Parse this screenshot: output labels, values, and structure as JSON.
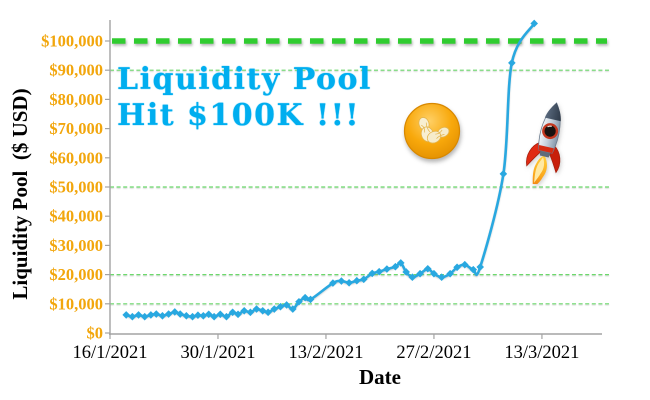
{
  "chart_data": {
    "type": "line",
    "annotation": {
      "line1": "Liquidity Pool",
      "line2": "Hit $100K !!!",
      "color": "#00AEEF"
    },
    "xlabel": "Date",
    "ylabel": "Liquidity Pool  ($ USD)",
    "x_epoch_label": "16/1/2021",
    "x_unit": "days since 16/1/2021",
    "xlim": [
      0,
      63.8
    ],
    "ylim": [
      0,
      107000
    ],
    "x_ticks": [
      {
        "label": "16/1/2021",
        "day": 0
      },
      {
        "label": "30/1/2021",
        "day": 14
      },
      {
        "label": "13/2/2021",
        "day": 28
      },
      {
        "label": "27/2/2021",
        "day": 42
      },
      {
        "label": "13/3/2021",
        "day": 56
      }
    ],
    "y_ticks": [
      {
        "label": "$0",
        "value": 0
      },
      {
        "label": "$10,000",
        "value": 10000
      },
      {
        "label": "$20,000",
        "value": 20000
      },
      {
        "label": "$30,000",
        "value": 30000
      },
      {
        "label": "$40,000",
        "value": 40000
      },
      {
        "label": "$50,000",
        "value": 50000
      },
      {
        "label": "$60,000",
        "value": 60000
      },
      {
        "label": "$70,000",
        "value": 70000
      },
      {
        "label": "$80,000",
        "value": 80000
      },
      {
        "label": "$90,000",
        "value": 90000
      },
      {
        "label": "$100,000",
        "value": 100000
      }
    ],
    "gridlines": {
      "values": [
        10000,
        20000,
        50000,
        90000
      ],
      "style": "dotted",
      "color": "#6CD96C"
    },
    "reference_line": {
      "value": 100000,
      "style": "thick-dashed",
      "color": "#30CC30"
    },
    "axis_color": "#A3A3A3",
    "y_tick_label_color": "#F2A60C",
    "x_tick_label_color": "#000000",
    "series": [
      {
        "name": "Liquidity Pool ($ USD)",
        "color": "#29A8E0",
        "marker": "diamond",
        "smooth": true,
        "points": [
          [
            2.1,
            6200
          ],
          [
            2.9,
            5600
          ],
          [
            3.7,
            6200
          ],
          [
            4.5,
            5600
          ],
          [
            5.3,
            6200
          ],
          [
            6.0,
            6500
          ],
          [
            6.8,
            5900
          ],
          [
            7.6,
            6500
          ],
          [
            8.4,
            7200
          ],
          [
            9.1,
            6500
          ],
          [
            9.9,
            5900
          ],
          [
            10.7,
            5600
          ],
          [
            11.4,
            6100
          ],
          [
            12.1,
            5900
          ],
          [
            12.8,
            6400
          ],
          [
            13.5,
            5600
          ],
          [
            14.3,
            6400
          ],
          [
            15.1,
            5600
          ],
          [
            15.9,
            7100
          ],
          [
            16.6,
            6400
          ],
          [
            17.4,
            7600
          ],
          [
            18.2,
            7100
          ],
          [
            19.0,
            8200
          ],
          [
            19.8,
            7600
          ],
          [
            20.5,
            7100
          ],
          [
            21.3,
            8200
          ],
          [
            22.1,
            9000
          ],
          [
            22.9,
            9600
          ],
          [
            23.7,
            8200
          ],
          [
            24.5,
            10700
          ],
          [
            25.3,
            12100
          ],
          [
            26.0,
            11500
          ],
          [
            28.9,
            17100
          ],
          [
            30.0,
            17800
          ],
          [
            31.0,
            17200
          ],
          [
            32.0,
            17900
          ],
          [
            32.9,
            18400
          ],
          [
            34.0,
            20400
          ],
          [
            34.9,
            21000
          ],
          [
            35.9,
            21900
          ],
          [
            37.0,
            22700
          ],
          [
            37.7,
            24000
          ],
          [
            38.4,
            20900
          ],
          [
            39.2,
            19100
          ],
          [
            40.2,
            20300
          ],
          [
            41.2,
            22000
          ],
          [
            42.0,
            20300
          ],
          [
            43.0,
            19100
          ],
          [
            44.1,
            20300
          ],
          [
            45.0,
            22500
          ],
          [
            46.0,
            23400
          ],
          [
            47.1,
            21700
          ],
          [
            48.0,
            22600
          ],
          [
            51.0,
            54500
          ],
          [
            52.1,
            92500
          ],
          [
            55.0,
            106000
          ]
        ]
      }
    ]
  },
  "icons": {
    "coin": "peanut-coin",
    "rocket": "rocket"
  }
}
